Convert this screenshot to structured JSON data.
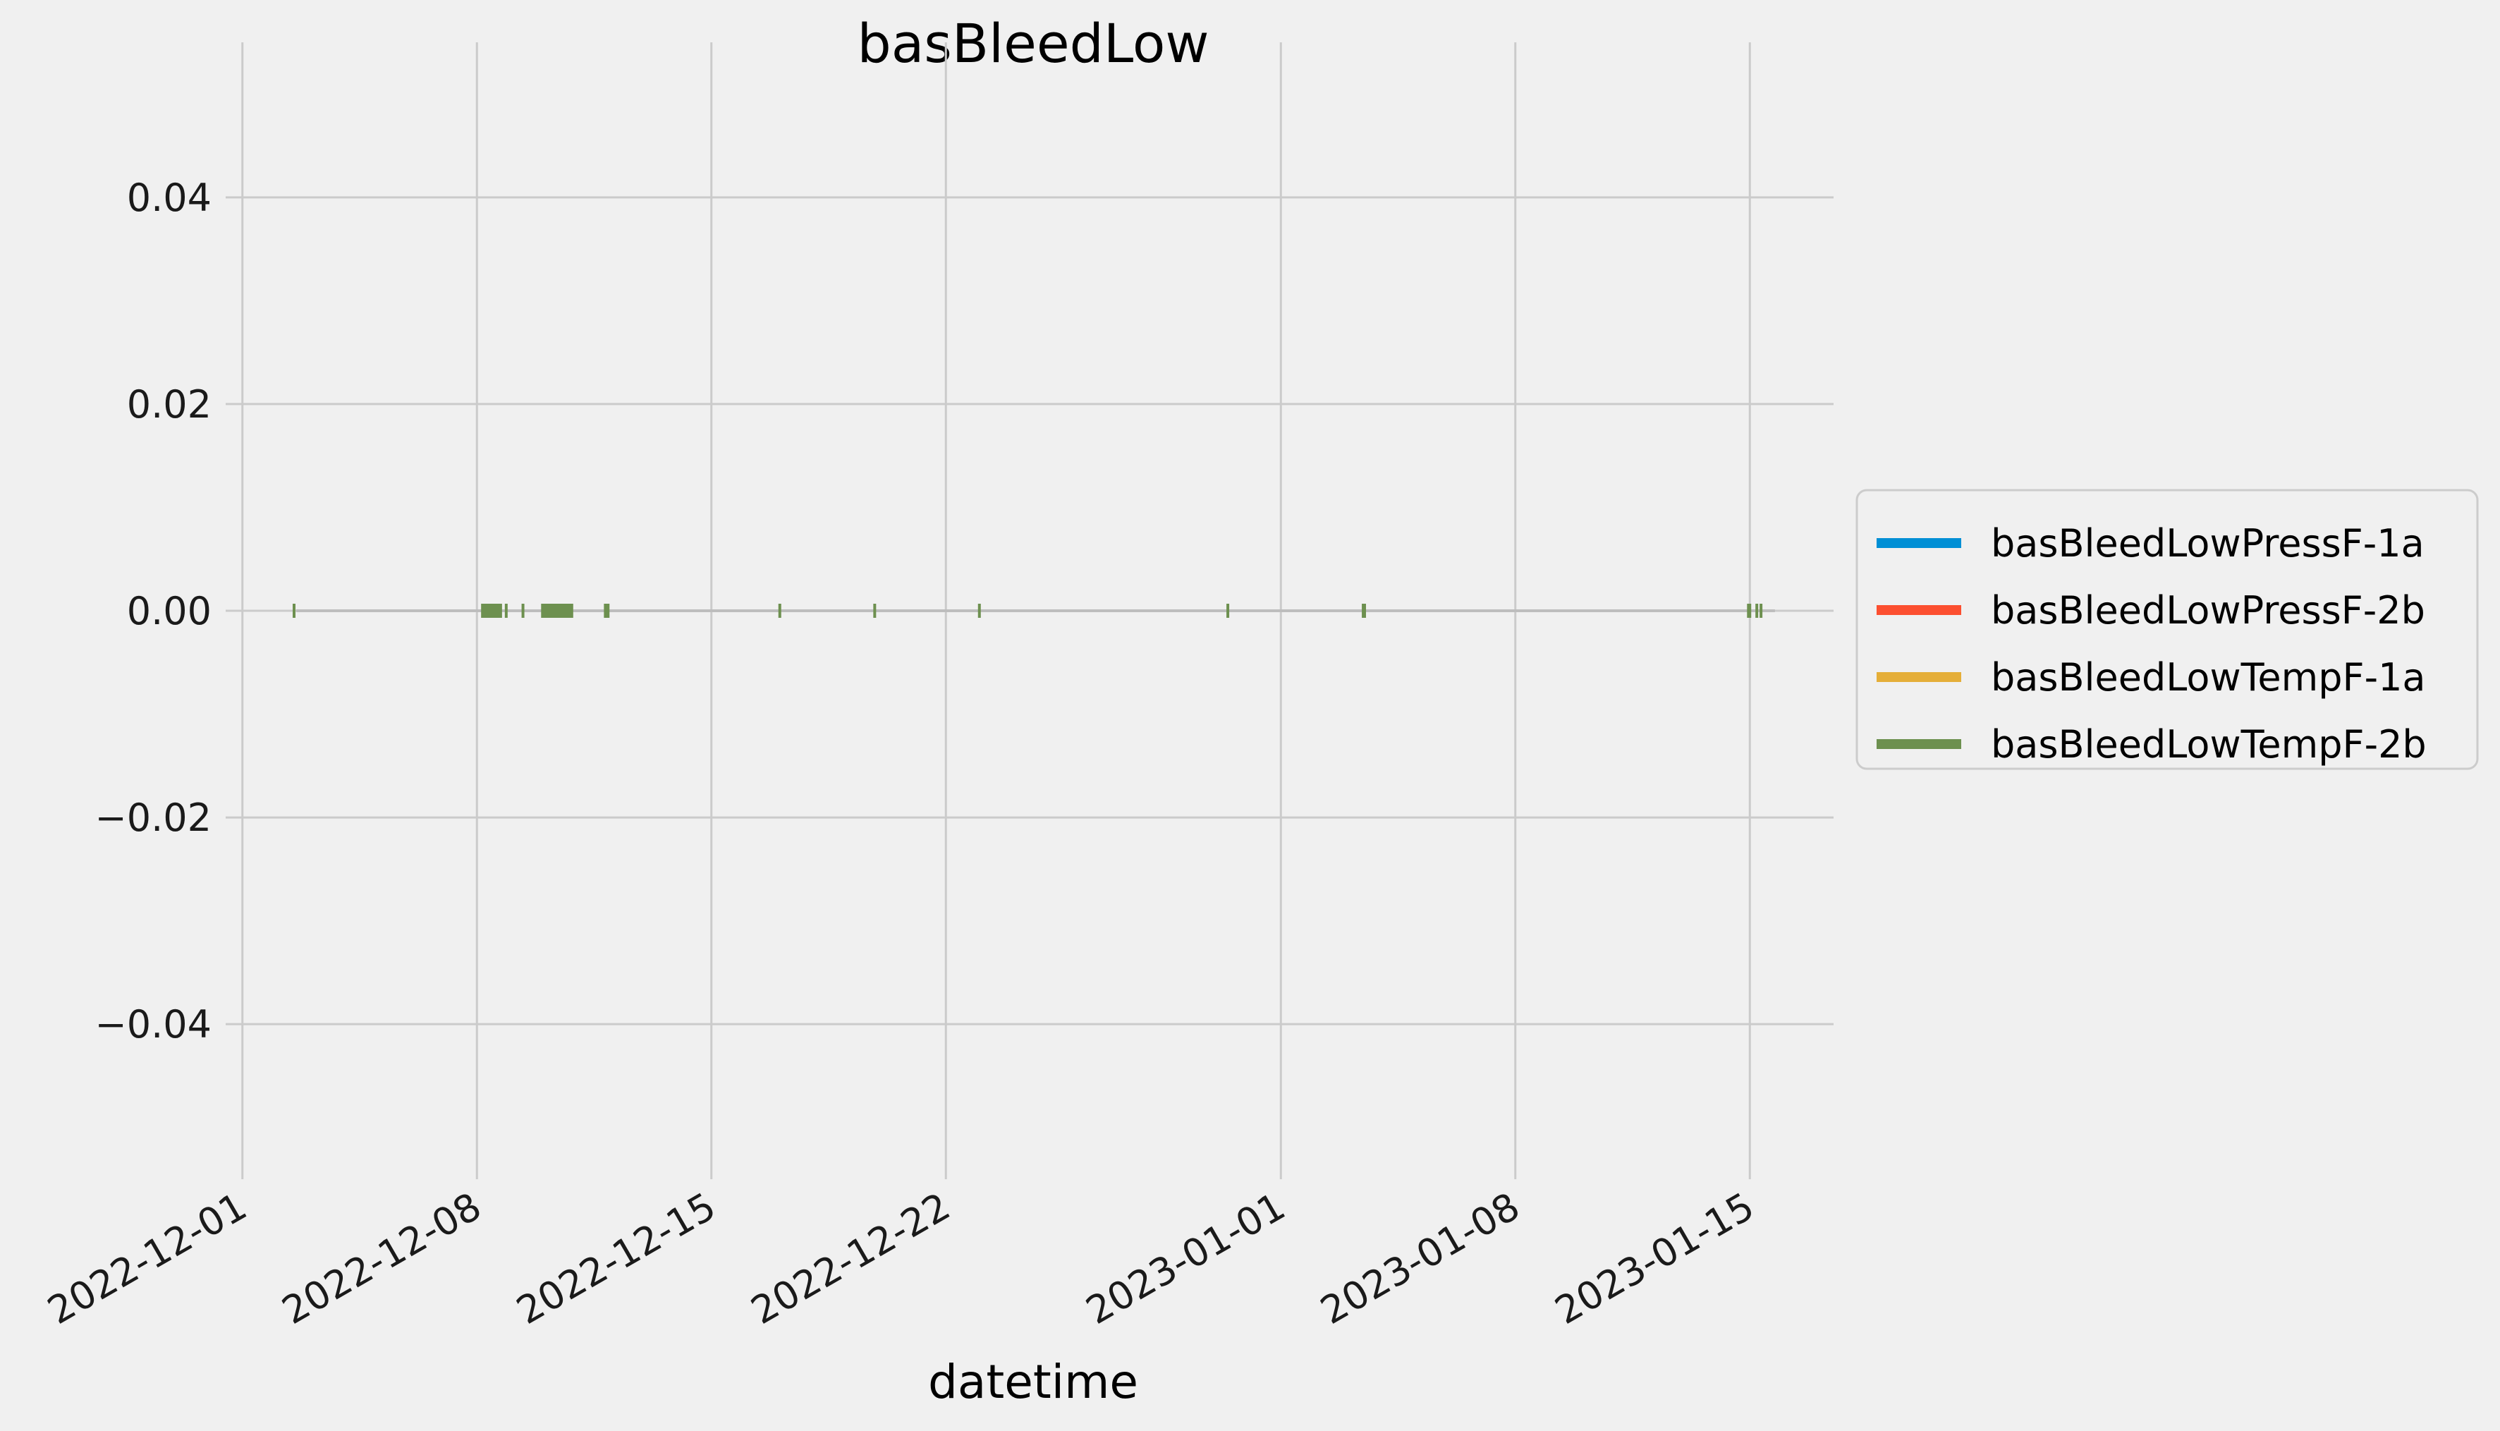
{
  "chart_data": {
    "type": "line",
    "title": "basBleedLow",
    "xlabel": "datetime",
    "ylabel": "",
    "x_range": [
      "2022-11-30T12:00",
      "2023-01-17T12:00"
    ],
    "ylim": [
      -0.055,
      0.055
    ],
    "x_ticks": [
      "2022-12-01",
      "2022-12-08",
      "2022-12-15",
      "2022-12-22",
      "2023-01-01",
      "2023-01-08",
      "2023-01-15"
    ],
    "y_ticks": [
      -0.04,
      -0.02,
      0.0,
      0.02,
      0.04
    ],
    "y_tick_labels": [
      "−0.04",
      "−0.02",
      "0.00",
      "0.02",
      "0.04"
    ],
    "grid": true,
    "legend_position": "right, outside the plot area",
    "series": [
      {
        "name": "basBleedLowPressF-1a",
        "color": "#008fd5"
      },
      {
        "name": "basBleedLowPressF-2b",
        "color": "#fc4f30"
      },
      {
        "name": "basBleedLowTempF-1a",
        "color": "#e5ae38"
      },
      {
        "name": "basBleedLowTempF-2b",
        "color": "#6d904f",
        "segments": [
          {
            "start": "2022-12-02T12:00",
            "end": "2022-12-02T13:00",
            "y": 0
          },
          {
            "start": "2022-12-08T03:00",
            "end": "2022-12-08T18:00",
            "y": 0
          },
          {
            "start": "2022-12-08T20:00",
            "end": "2022-12-08T21:00",
            "y": 0
          },
          {
            "start": "2022-12-09T08:00",
            "end": "2022-12-09T10:00",
            "y": 0
          },
          {
            "start": "2022-12-09T22:00",
            "end": "2022-12-10T21:00",
            "y": 0
          },
          {
            "start": "2022-12-11T19:00",
            "end": "2022-12-11T23:00",
            "y": 0
          },
          {
            "start": "2022-12-17T00:00",
            "end": "2022-12-17T01:00",
            "y": 0
          },
          {
            "start": "2022-12-19T20:00",
            "end": "2022-12-19T21:00",
            "y": 0
          },
          {
            "start": "2022-12-22T23:00",
            "end": "2022-12-23T00:00",
            "y": 0
          },
          {
            "start": "2022-12-30T09:00",
            "end": "2022-12-30T10:00",
            "y": 0
          },
          {
            "start": "2023-01-03T10:00",
            "end": "2023-01-03T13:00",
            "y": 0
          },
          {
            "start": "2023-01-14T22:00",
            "end": "2023-01-15T01:00",
            "y": 0
          },
          {
            "start": "2023-01-15T04:00",
            "end": "2023-01-15T05:00",
            "y": 0
          },
          {
            "start": "2023-01-15T07:00",
            "end": "2023-01-15T08:00",
            "y": 0
          }
        ]
      }
    ]
  }
}
